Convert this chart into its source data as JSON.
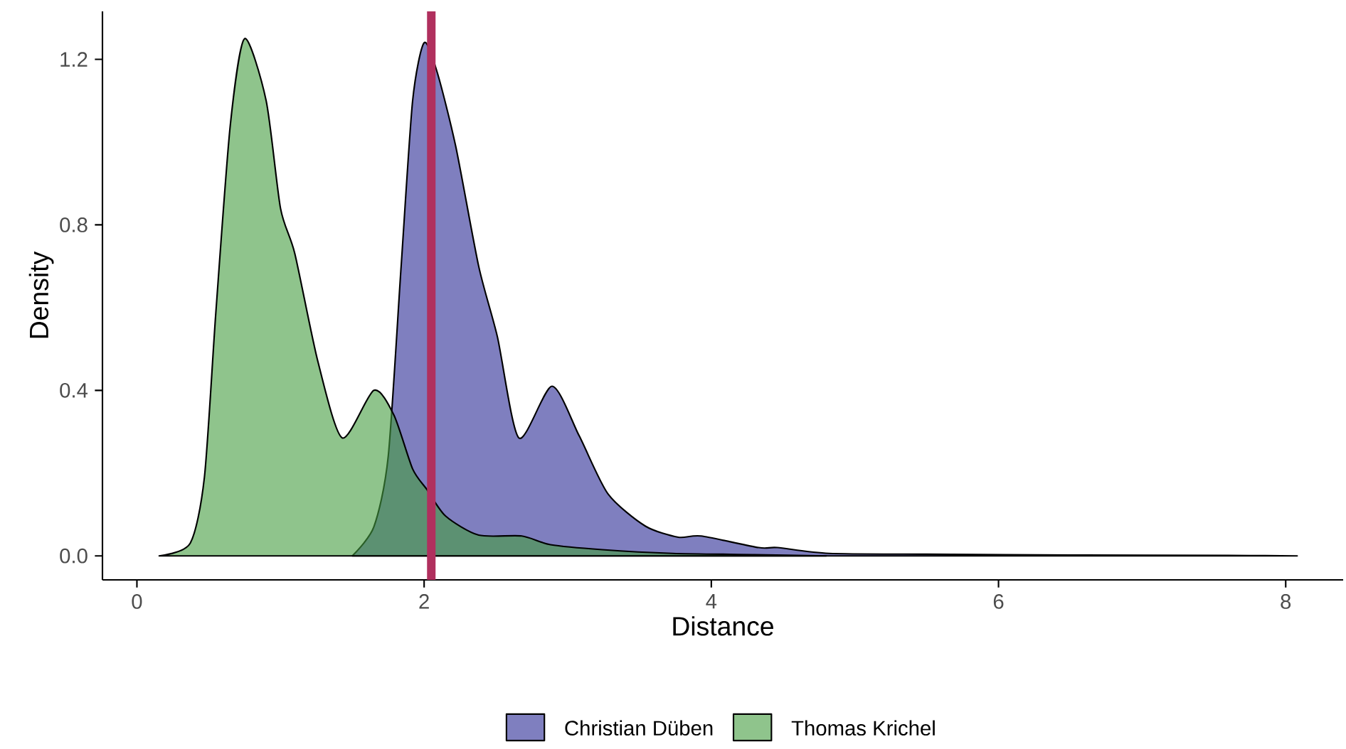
{
  "chart_data": {
    "type": "area",
    "xlabel": "Distance",
    "ylabel": "Density",
    "xlim": [
      -0.24,
      8.4
    ],
    "ylim": [
      -0.058,
      1.316
    ],
    "xticks": [
      0,
      2,
      4,
      6,
      8
    ],
    "yticks": [
      {
        "value": 0,
        "label": "0.0"
      },
      {
        "value": 0.4,
        "label": "0.4"
      },
      {
        "value": 0.8,
        "label": "0.8"
      },
      {
        "value": 1.2,
        "label": "1.2"
      }
    ],
    "grid": false,
    "legend": "bottom",
    "series": [
      {
        "name": "Christian Düben",
        "color": "#7f7fbf",
        "x": [
          1.5,
          1.65,
          1.75,
          1.84,
          1.92,
          2.0,
          2.09,
          2.22,
          2.38,
          2.51,
          2.66,
          2.89,
          3.08,
          3.28,
          3.54,
          3.77,
          3.93,
          4.33,
          4.46,
          4.82,
          5.5,
          6.5,
          7.6,
          8.08
        ],
        "values": [
          0,
          0.07,
          0.24,
          0.7,
          1.1,
          1.24,
          1.17,
          0.99,
          0.7,
          0.53,
          0.285,
          0.41,
          0.29,
          0.15,
          0.072,
          0.045,
          0.048,
          0.02,
          0.02,
          0.006,
          0.004,
          0.002,
          0.001,
          0
        ]
      },
      {
        "name": "Thomas Krichel",
        "color": "#8fc48c",
        "x": [
          0.155,
          0.37,
          0.47,
          0.55,
          0.65,
          0.75,
          0.9,
          1.0,
          1.1,
          1.26,
          1.43,
          1.65,
          1.79,
          1.92,
          2.02,
          2.15,
          2.38,
          2.68,
          2.88,
          3.24,
          3.73,
          4.3,
          4.8
        ],
        "values": [
          0,
          0.03,
          0.19,
          0.59,
          1.04,
          1.25,
          1.1,
          0.84,
          0.73,
          0.47,
          0.285,
          0.4,
          0.34,
          0.21,
          0.16,
          0.096,
          0.05,
          0.048,
          0.027,
          0.015,
          0.006,
          0.003,
          0
        ]
      }
    ],
    "ref_lines": [
      {
        "axis": "x",
        "value": 2.05,
        "color": "#b0305e"
      }
    ]
  }
}
